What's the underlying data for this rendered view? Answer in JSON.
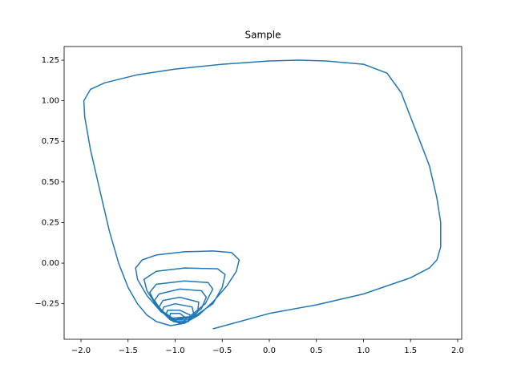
{
  "chart_data": {
    "type": "line",
    "title": "Sample",
    "x": [
      -0.6,
      0,
      0.5,
      1.0,
      1.5,
      1.7,
      1.78,
      1.82,
      1.82,
      1.78,
      1.7,
      1.6,
      1.5,
      1.4,
      1.25,
      1.0,
      0.6,
      0.3,
      0,
      -0.5,
      -1.0,
      -1.4,
      -1.75,
      -1.9,
      -1.97,
      -1.96,
      -1.9,
      -1.8,
      -1.7,
      -1.6,
      -1.5,
      -1.4,
      -1.3,
      -1.2,
      -1.05,
      -0.9,
      -0.75,
      -0.6,
      -0.45,
      -0.35,
      -0.32,
      -0.4,
      -0.6,
      -0.9,
      -1.2,
      -1.35,
      -1.42,
      -1.4,
      -1.3,
      -1.15,
      -1.0,
      -0.8,
      -0.6,
      -0.5,
      -0.47,
      -0.55,
      -0.9,
      -1.2,
      -1.33,
      -1.3,
      -1.2,
      -1.05,
      -0.85,
      -0.68,
      -0.6,
      -0.65,
      -0.9,
      -1.2,
      -1.27,
      -1.2,
      -1.05,
      -0.85,
      -0.72,
      -0.67,
      -0.72,
      -0.95,
      -1.17,
      -1.22,
      -1.15,
      -1.0,
      -0.85,
      -0.76,
      -0.75,
      -0.95,
      -1.13,
      -1.17,
      -1.1,
      -0.98,
      -0.86,
      -0.8,
      -0.82,
      -1.0,
      -1.12,
      -1.14,
      -1.05,
      -0.95,
      -0.86,
      -0.84,
      -0.95,
      -1.08,
      -1.1,
      -1.02,
      -0.92,
      -0.88,
      -0.95,
      -1.05,
      -1.06,
      -1.0
    ],
    "series": [
      {
        "color": "#1f77b4",
        "values": [
          -0.405,
          -0.31,
          -0.257,
          -0.19,
          -0.09,
          -0.03,
          0.02,
          0.1,
          0.25,
          0.4,
          0.6,
          0.75,
          0.9,
          1.05,
          1.17,
          1.225,
          1.245,
          1.25,
          1.245,
          1.225,
          1.195,
          1.16,
          1.11,
          1.07,
          1.0,
          0.9,
          0.7,
          0.45,
          0.2,
          0.0,
          -0.15,
          -0.25,
          -0.32,
          -0.36,
          -0.385,
          -0.37,
          -0.32,
          -0.24,
          -0.14,
          -0.05,
          0.02,
          0.065,
          0.075,
          0.07,
          0.05,
          0.02,
          -0.03,
          -0.1,
          -0.2,
          -0.3,
          -0.35,
          -0.33,
          -0.25,
          -0.15,
          -0.07,
          -0.035,
          -0.03,
          -0.05,
          -0.1,
          -0.17,
          -0.26,
          -0.34,
          -0.33,
          -0.25,
          -0.16,
          -0.12,
          -0.11,
          -0.13,
          -0.18,
          -0.26,
          -0.34,
          -0.34,
          -0.28,
          -0.21,
          -0.17,
          -0.16,
          -0.19,
          -0.23,
          -0.29,
          -0.35,
          -0.35,
          -0.3,
          -0.24,
          -0.21,
          -0.23,
          -0.27,
          -0.32,
          -0.36,
          -0.36,
          -0.32,
          -0.27,
          -0.25,
          -0.27,
          -0.3,
          -0.35,
          -0.37,
          -0.36,
          -0.32,
          -0.29,
          -0.29,
          -0.32,
          -0.36,
          -0.37,
          -0.34,
          -0.31,
          -0.31,
          -0.34,
          -0.36
        ]
      }
    ],
    "xlim": [
      -2.179,
      2.043
    ],
    "ylim": [
      -0.469,
      1.334
    ],
    "xticks": [
      {
        "value": -2.0,
        "label": "−2.0"
      },
      {
        "value": -1.5,
        "label": "−1.5"
      },
      {
        "value": -1.0,
        "label": "−1.0"
      },
      {
        "value": -0.5,
        "label": "−0.5"
      },
      {
        "value": 0,
        "label": "0.0"
      },
      0.5,
      {
        "value": 1.0,
        "label": "1.0"
      },
      1.5,
      {
        "value": 2.0,
        "label": "2.0"
      }
    ],
    "yticks": [
      {
        "value": -0.25,
        "label": "−0.25"
      },
      {
        "value": 0,
        "label": "0.00"
      },
      0.25,
      {
        "value": 0.5,
        "label": "0.50"
      },
      0.75,
      {
        "value": 1.0,
        "label": "1.00"
      },
      1.25
    ]
  }
}
